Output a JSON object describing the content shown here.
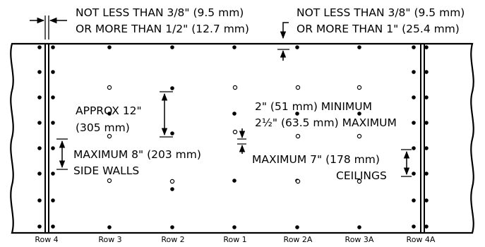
{
  "annotations": {
    "edge_top": {
      "line1": "NOT LESS THAN  3/8\" (9.5 mm)",
      "line2": "OR MORE THAN 1/2\" (12.7 mm)"
    },
    "edge_right": {
      "line1": "NOT LESS THAN  3/8\" (9.5 mm)",
      "line2": "OR MORE THAN 1\" (25.4 mm)"
    },
    "approx": {
      "line1": "APPROX 12\"",
      "line2": "(305 mm)"
    },
    "offset": {
      "line1": "2\" (51 mm) MINIMUM",
      "line2": "2½\" (63.5 mm) MAXIMUM"
    },
    "side_walls": {
      "line1": "MAXIMUM 8\" (203 mm)",
      "line2": "SIDE WALLS"
    },
    "ceilings": {
      "line1": "MAXIMUM 7\" (178 mm)",
      "line2": "CEILINGS"
    }
  },
  "rows": [
    {
      "label": "Row 4"
    },
    {
      "label": "Row 3"
    },
    {
      "label": "Row 2"
    },
    {
      "label": "Row 1"
    },
    {
      "label": "Row 2A"
    },
    {
      "label": "Row 3A"
    },
    {
      "label": "Row 4A"
    }
  ]
}
